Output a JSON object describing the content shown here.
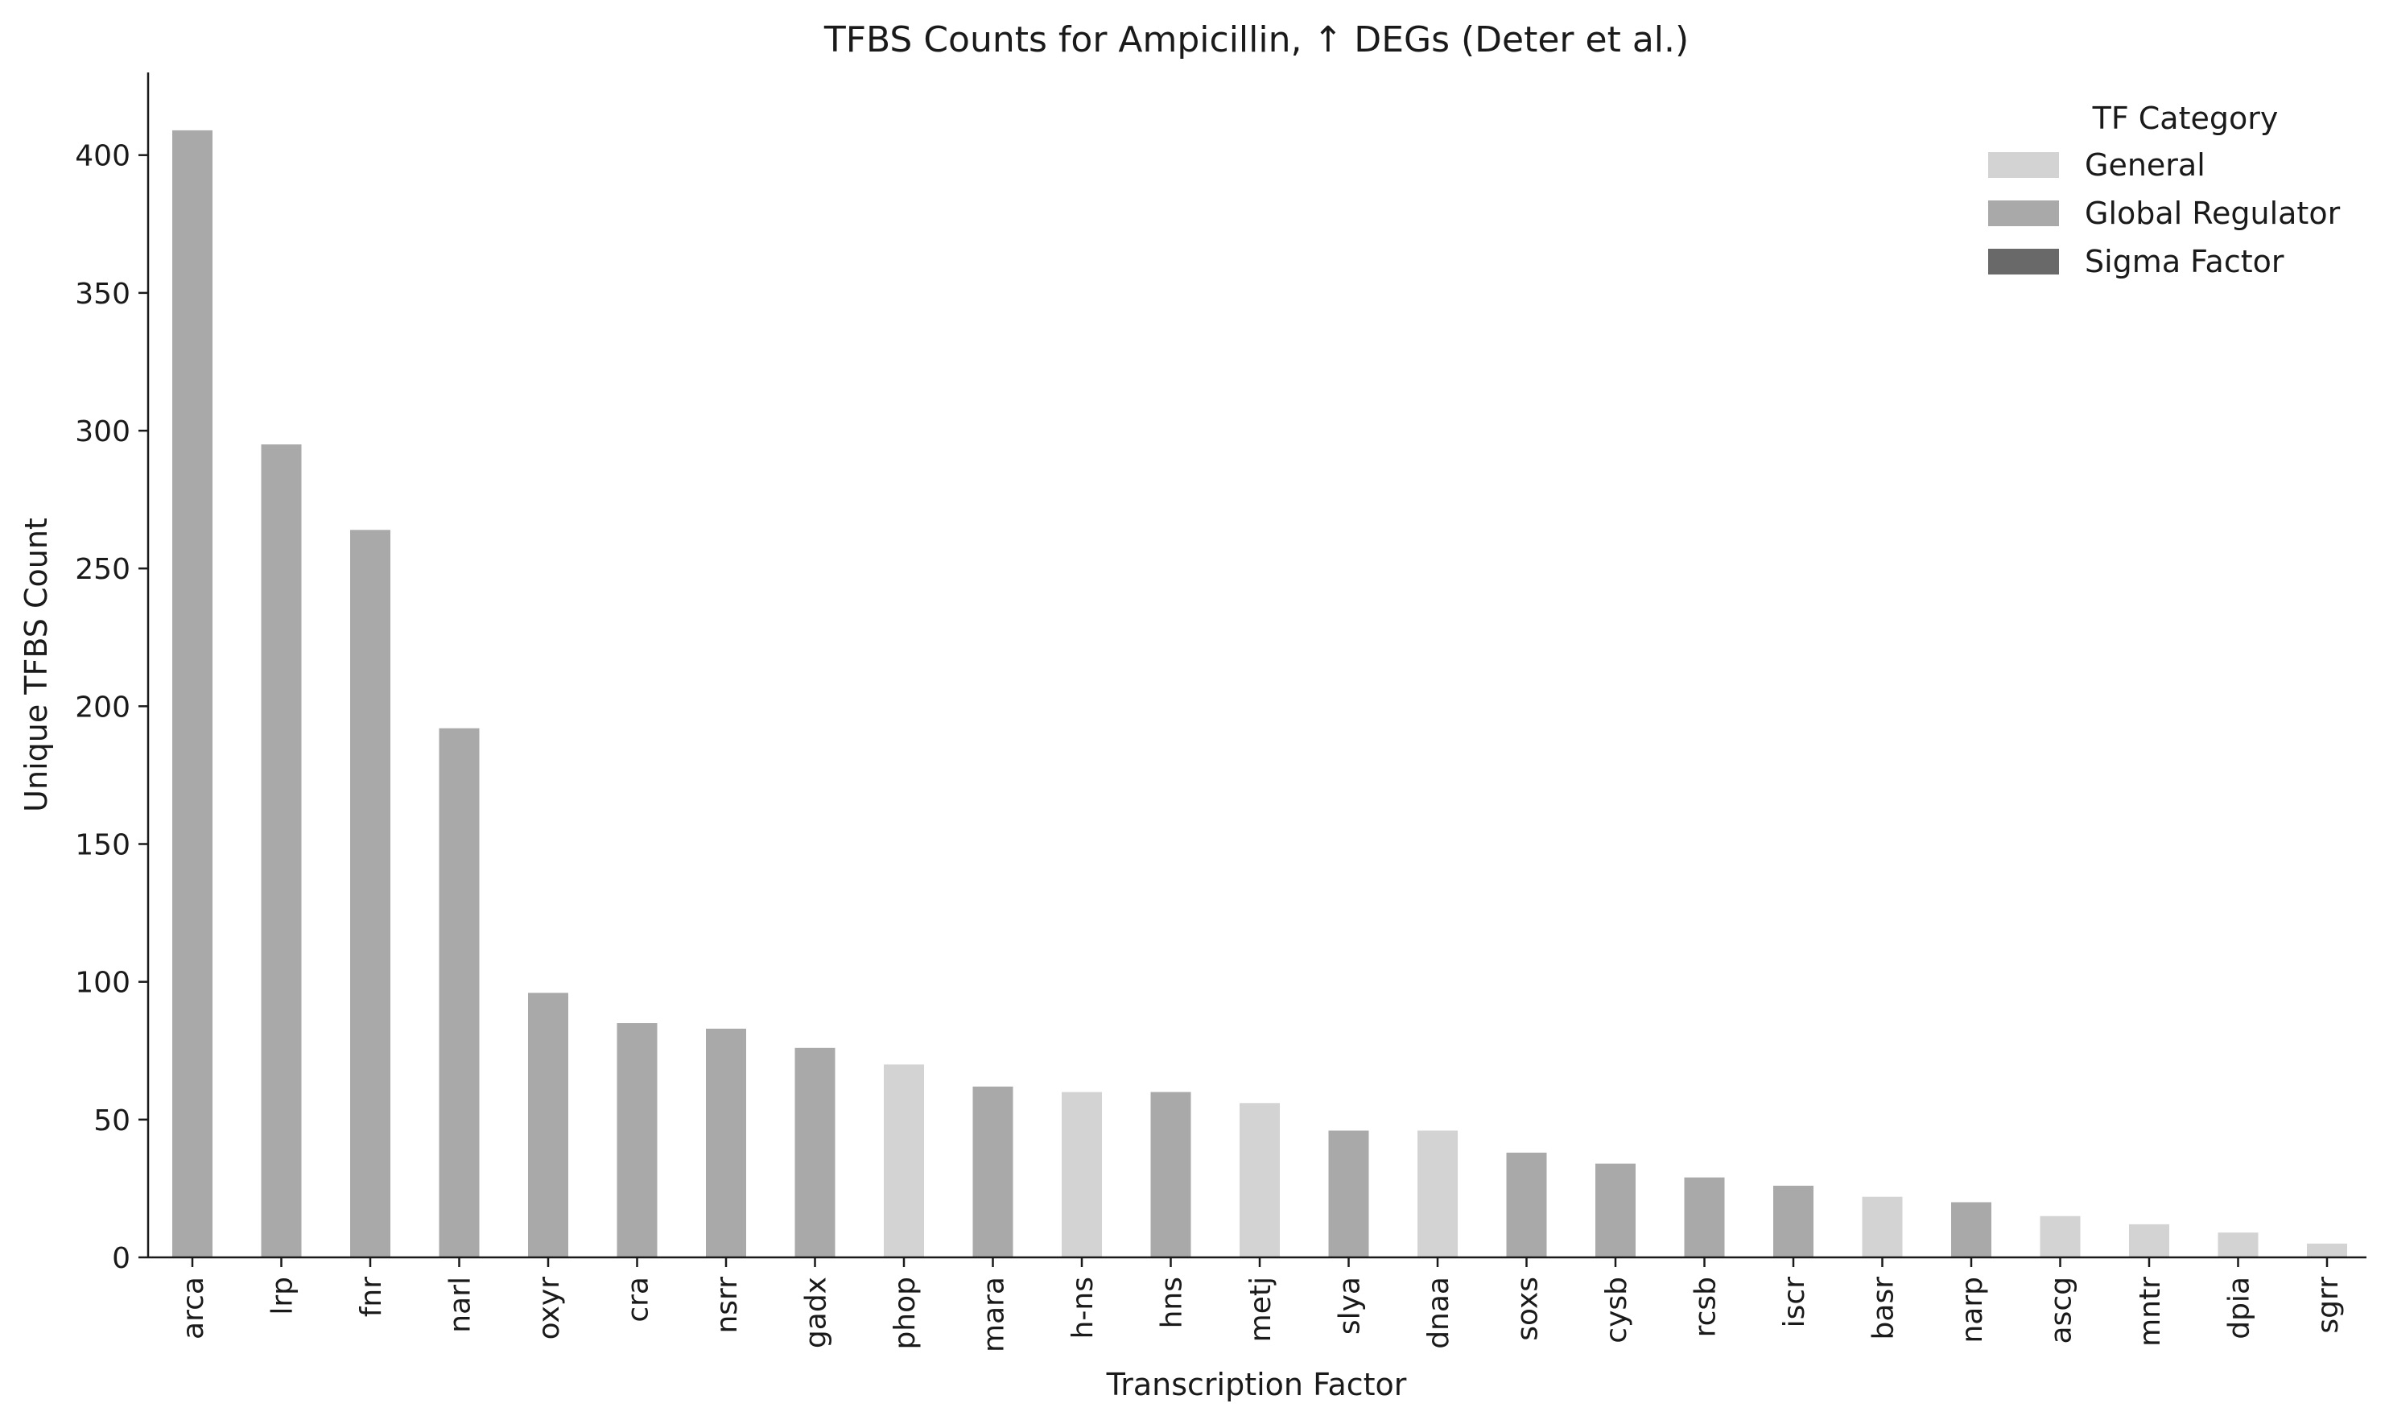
{
  "chart_data": {
    "type": "bar",
    "title": "TFBS Counts for Ampicillin, ↑ DEGs (Deter et al.)",
    "xlabel": "Transcription Factor",
    "ylabel": "Unique TFBS Count",
    "ylim": [
      0,
      430
    ],
    "yticks": [
      0,
      50,
      100,
      150,
      200,
      250,
      300,
      350,
      400
    ],
    "grid": false,
    "categories": [
      "arca",
      "lrp",
      "fnr",
      "narl",
      "oxyr",
      "cra",
      "nsrr",
      "gadx",
      "phop",
      "mara",
      "h-ns",
      "hns",
      "metj",
      "slya",
      "dnaa",
      "soxs",
      "cysb",
      "rcsb",
      "iscr",
      "basr",
      "narp",
      "ascg",
      "mntr",
      "dpia",
      "sgrr"
    ],
    "values": [
      409,
      295,
      264,
      192,
      96,
      85,
      83,
      76,
      70,
      62,
      60,
      60,
      56,
      46,
      46,
      38,
      34,
      29,
      26,
      22,
      20,
      15,
      12,
      9,
      5
    ],
    "bar_category": [
      "Global Regulator",
      "Global Regulator",
      "Global Regulator",
      "Global Regulator",
      "Global Regulator",
      "Global Regulator",
      "Global Regulator",
      "Global Regulator",
      "General",
      "Global Regulator",
      "General",
      "Global Regulator",
      "General",
      "Global Regulator",
      "General",
      "Global Regulator",
      "Global Regulator",
      "Global Regulator",
      "Global Regulator",
      "General",
      "Global Regulator",
      "General",
      "General",
      "General",
      "General"
    ],
    "legend": {
      "title": "TF Category",
      "placement": "top-right",
      "entries": [
        {
          "label": "General",
          "color": "#d3d3d3"
        },
        {
          "label": "Global Regulator",
          "color": "#a9a9a9"
        },
        {
          "label": "Sigma Factor",
          "color": "#696969"
        }
      ]
    }
  }
}
